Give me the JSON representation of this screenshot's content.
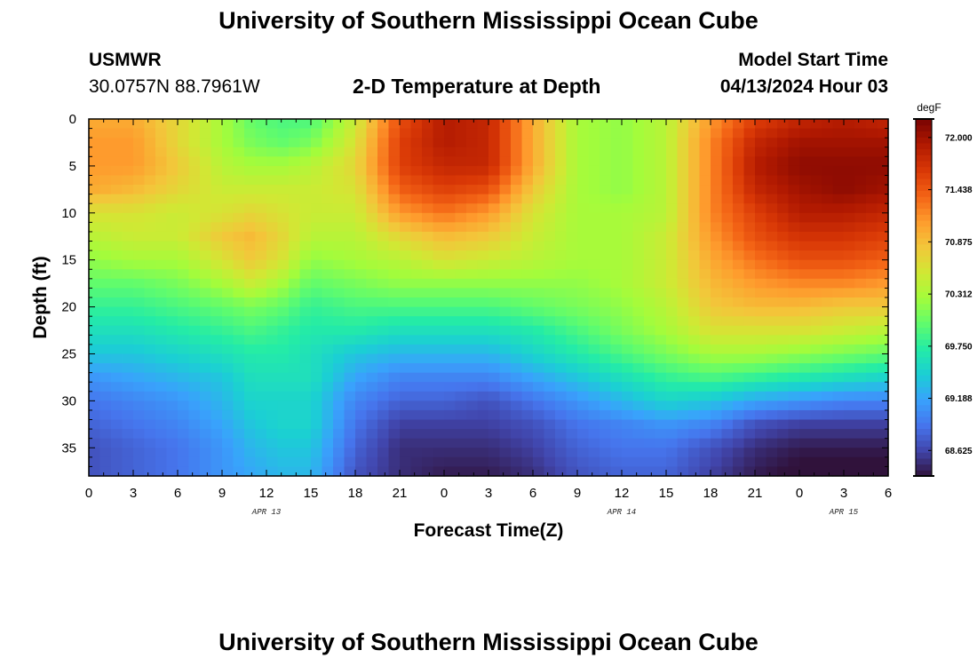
{
  "page": {
    "title": "University of Southern Mississippi Ocean Cube",
    "footer_title": "University of Southern Mississippi Ocean Cube"
  },
  "station": {
    "name": "USMWR",
    "coords": "30.0757N  88.7961W"
  },
  "subtitle": "2-D Temperature at Depth",
  "model_start": {
    "label": "Model Start Time",
    "value": "04/13/2024 Hour 03"
  },
  "chart_data": {
    "type": "heatmap",
    "title": "2-D Temperature at Depth",
    "xlabel": "Forecast Time(Z)",
    "ylabel": "Depth (ft)",
    "x_range_hours": [
      0,
      54
    ],
    "y_range_ft": [
      0,
      38
    ],
    "x_ticks": [
      {
        "hour": 0,
        "label": "0"
      },
      {
        "hour": 3,
        "label": "3"
      },
      {
        "hour": 6,
        "label": "6"
      },
      {
        "hour": 9,
        "label": "9"
      },
      {
        "hour": 12,
        "label": "12"
      },
      {
        "hour": 15,
        "label": "15"
      },
      {
        "hour": 18,
        "label": "18"
      },
      {
        "hour": 21,
        "label": "21"
      },
      {
        "hour": 24,
        "label": "0"
      },
      {
        "hour": 27,
        "label": "3"
      },
      {
        "hour": 30,
        "label": "6"
      },
      {
        "hour": 33,
        "label": "9"
      },
      {
        "hour": 36,
        "label": "12"
      },
      {
        "hour": 39,
        "label": "15"
      },
      {
        "hour": 42,
        "label": "18"
      },
      {
        "hour": 45,
        "label": "21"
      },
      {
        "hour": 48,
        "label": "0"
      },
      {
        "hour": 51,
        "label": "3"
      },
      {
        "hour": 54,
        "label": "6"
      }
    ],
    "y_ticks": [
      {
        "depth": 0,
        "label": "0"
      },
      {
        "depth": 5,
        "label": "5"
      },
      {
        "depth": 10,
        "label": "10"
      },
      {
        "depth": 15,
        "label": "15"
      },
      {
        "depth": 20,
        "label": "20"
      },
      {
        "depth": 25,
        "label": "25"
      },
      {
        "depth": 30,
        "label": "30"
      },
      {
        "depth": 35,
        "label": "35"
      }
    ],
    "date_labels": [
      {
        "hour": 12,
        "label": "APR 13"
      },
      {
        "hour": 36,
        "label": "APR 14"
      },
      {
        "hour": 51,
        "label": "APR 15"
      }
    ],
    "colorbar": {
      "unit": "degF",
      "min": 68.35,
      "max": 72.2,
      "ticks": [
        "72.000",
        "71.438",
        "70.875",
        "70.312",
        "69.750",
        "69.188",
        "68.625"
      ]
    },
    "depths_ft": [
      0,
      2.5,
      5,
      7.5,
      10,
      12.5,
      15,
      17.5,
      20,
      22.5,
      25,
      27.5,
      30,
      32.5,
      35,
      38
    ],
    "profiles": [
      {
        "hour": 0,
        "temps": [
          71.0,
          71.1,
          71.1,
          71.0,
          70.6,
          70.4,
          70.2,
          70.0,
          69.8,
          69.6,
          69.4,
          69.1,
          68.9,
          68.8,
          68.7,
          68.7
        ]
      },
      {
        "hour": 3,
        "temps": [
          71.0,
          71.1,
          71.1,
          70.9,
          70.6,
          70.5,
          70.3,
          70.0,
          69.8,
          69.6,
          69.4,
          69.2,
          69.0,
          68.9,
          68.8,
          68.8
        ]
      },
      {
        "hour": 6,
        "temps": [
          70.7,
          70.7,
          70.8,
          70.7,
          70.5,
          70.5,
          70.3,
          70.1,
          69.9,
          69.7,
          69.5,
          69.3,
          69.1,
          69.0,
          68.9,
          68.9
        ]
      },
      {
        "hour": 9,
        "temps": [
          70.3,
          70.3,
          70.4,
          70.5,
          70.6,
          70.8,
          70.6,
          70.3,
          70.0,
          69.8,
          69.6,
          69.4,
          69.3,
          69.2,
          69.1,
          69.1
        ]
      },
      {
        "hour": 11,
        "temps": [
          70.0,
          70.1,
          70.3,
          70.5,
          70.7,
          70.9,
          70.8,
          70.5,
          70.1,
          69.9,
          69.7,
          69.6,
          69.5,
          69.4,
          69.3,
          69.2
        ]
      },
      {
        "hour": 13,
        "temps": [
          69.9,
          70.0,
          70.3,
          70.5,
          70.6,
          70.7,
          70.6,
          70.3,
          70.0,
          69.8,
          69.7,
          69.6,
          69.5,
          69.5,
          69.4,
          69.3
        ]
      },
      {
        "hour": 15,
        "temps": [
          69.9,
          70.1,
          70.4,
          70.5,
          70.5,
          70.4,
          70.2,
          70.0,
          69.8,
          69.7,
          69.6,
          69.6,
          69.5,
          69.5,
          69.4,
          69.3
        ]
      },
      {
        "hour": 18,
        "temps": [
          70.5,
          70.6,
          70.7,
          70.6,
          70.5,
          70.4,
          70.3,
          70.1,
          69.9,
          69.7,
          69.4,
          69.2,
          69.0,
          68.9,
          68.8,
          68.7
        ]
      },
      {
        "hour": 21,
        "temps": [
          71.5,
          71.6,
          71.6,
          71.4,
          71.1,
          70.7,
          70.4,
          70.2,
          69.9,
          69.6,
          69.3,
          69.0,
          68.8,
          68.6,
          68.5,
          68.5
        ]
      },
      {
        "hour": 24,
        "temps": [
          71.9,
          71.9,
          71.8,
          71.6,
          71.3,
          70.9,
          70.6,
          70.2,
          69.9,
          69.6,
          69.3,
          69.0,
          68.8,
          68.6,
          68.5,
          68.4
        ]
      },
      {
        "hour": 27,
        "temps": [
          71.8,
          71.8,
          71.8,
          71.5,
          71.1,
          70.8,
          70.5,
          70.2,
          69.9,
          69.6,
          69.3,
          69.0,
          68.7,
          68.6,
          68.5,
          68.4
        ]
      },
      {
        "hour": 30,
        "temps": [
          71.0,
          71.0,
          71.0,
          70.8,
          70.6,
          70.5,
          70.4,
          70.2,
          70.0,
          69.7,
          69.5,
          69.2,
          68.9,
          68.7,
          68.6,
          68.5
        ]
      },
      {
        "hour": 33,
        "temps": [
          70.3,
          70.3,
          70.3,
          70.3,
          70.3,
          70.3,
          70.3,
          70.2,
          70.1,
          69.9,
          69.7,
          69.4,
          69.1,
          68.9,
          68.8,
          68.7
        ]
      },
      {
        "hour": 36,
        "temps": [
          70.2,
          70.2,
          70.2,
          70.2,
          70.3,
          70.3,
          70.3,
          70.3,
          70.2,
          70.1,
          69.9,
          69.6,
          69.3,
          69.0,
          68.9,
          68.8
        ]
      },
      {
        "hour": 39,
        "temps": [
          70.4,
          70.4,
          70.4,
          70.4,
          70.4,
          70.5,
          70.5,
          70.5,
          70.4,
          70.3,
          70.1,
          69.8,
          69.5,
          69.1,
          68.9,
          68.8
        ]
      },
      {
        "hour": 42,
        "temps": [
          71.1,
          71.2,
          71.2,
          71.2,
          71.2,
          71.1,
          71.0,
          70.9,
          70.8,
          70.6,
          70.3,
          69.9,
          69.4,
          69.0,
          68.7,
          68.6
        ]
      },
      {
        "hour": 45,
        "temps": [
          71.6,
          71.8,
          71.9,
          71.8,
          71.6,
          71.5,
          71.3,
          71.1,
          70.9,
          70.6,
          70.3,
          69.8,
          69.2,
          68.7,
          68.5,
          68.4
        ]
      },
      {
        "hour": 48,
        "temps": [
          71.8,
          72.0,
          72.1,
          72.0,
          71.9,
          71.7,
          71.5,
          71.2,
          70.9,
          70.6,
          70.2,
          69.7,
          69.1,
          68.6,
          68.4,
          68.3
        ]
      },
      {
        "hour": 51,
        "temps": [
          71.9,
          72.0,
          72.1,
          72.1,
          71.9,
          71.7,
          71.5,
          71.2,
          70.8,
          70.5,
          70.1,
          69.6,
          69.0,
          68.6,
          68.4,
          68.3
        ]
      },
      {
        "hour": 54,
        "temps": [
          71.8,
          72.0,
          72.1,
          72.0,
          71.8,
          71.6,
          71.4,
          71.1,
          70.8,
          70.4,
          70.0,
          69.5,
          69.0,
          68.6,
          68.4,
          68.3
        ]
      }
    ]
  },
  "colors": {
    "colormap": [
      "#30123b",
      "#4145ab",
      "#4675ed",
      "#39a2fc",
      "#1bcfd4",
      "#24eca6",
      "#61fc6c",
      "#a4fc3b",
      "#d1e834",
      "#f3c63a",
      "#fe9b2d",
      "#f36315",
      "#d93806",
      "#b11901",
      "#7a0402"
    ]
  }
}
